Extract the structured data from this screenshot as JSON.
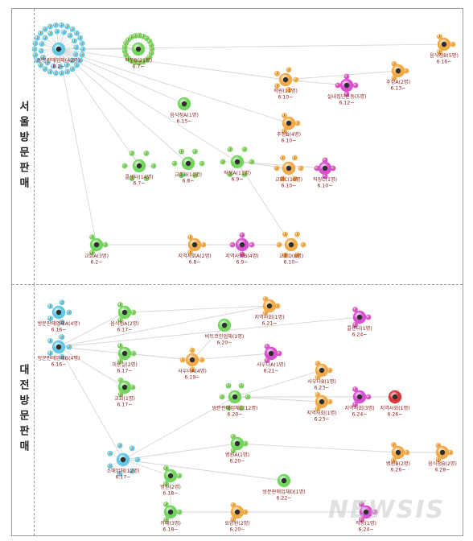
{
  "sections": {
    "seoul": "서울방문판매",
    "daejeon": "대전방문판매"
  },
  "watermark": "NEWSIS",
  "colors": {
    "blue": "#63c7e6",
    "green": "#72d65e",
    "orange": "#f2aa48",
    "magenta": "#d94fd2",
    "red": "#d93a3a",
    "label": "#8b1a1a"
  },
  "nodes": [
    {
      "id": "s1",
      "name": "방문판매업체(42명)",
      "date": "6.2~",
      "color": "blue"
    },
    {
      "id": "s2",
      "name": "직장B(21명)",
      "date": "6.7~",
      "color": "green"
    },
    {
      "id": "s3",
      "name": "음식점B(5명)",
      "date": "6.16~",
      "color": "orange"
    },
    {
      "id": "s4",
      "name": "학원(11명)",
      "date": "6.10~",
      "color": "orange"
    },
    {
      "id": "s5",
      "name": "실내집단운동(5명)",
      "date": "6.12~",
      "color": "magenta"
    },
    {
      "id": "s6",
      "name": "추정A(2명)",
      "date": "6.13~",
      "color": "orange"
    },
    {
      "id": "s7",
      "name": "음식점A(1명)",
      "date": "6.15~",
      "color": "green"
    },
    {
      "id": "s8",
      "name": "추정B(4명)",
      "date": "6.10~",
      "color": "orange"
    },
    {
      "id": "s9",
      "name": "콜센터(14명)",
      "date": "6.7~",
      "color": "green"
    },
    {
      "id": "s10",
      "name": "교회B(11명)",
      "date": "6.8~",
      "color": "green"
    },
    {
      "id": "s11",
      "name": "직장A(11명)",
      "date": "6.9~",
      "color": "green"
    },
    {
      "id": "s12",
      "name": "교회C(10명)",
      "date": "6.10~",
      "color": "orange"
    },
    {
      "id": "s13",
      "name": "직장C(1명)",
      "date": "6.10~",
      "color": "magenta"
    },
    {
      "id": "s14",
      "name": "교회A(3명)",
      "date": "6.2~",
      "color": "green"
    },
    {
      "id": "s15",
      "name": "지역사회A(2명)",
      "date": "6.8~",
      "color": "orange"
    },
    {
      "id": "s16",
      "name": "지역사회B(4명)",
      "date": "6.9~",
      "color": "magenta"
    },
    {
      "id": "s17",
      "name": "교회D(8명)",
      "date": "6.10~",
      "color": "orange"
    },
    {
      "id": "d1",
      "name": "방문판매업체A(4명)",
      "date": "6.16~",
      "color": "blue"
    },
    {
      "id": "d2",
      "name": "방문판매업체B(4명)",
      "date": "6.16~",
      "color": "blue"
    },
    {
      "id": "d3",
      "name": "음식점A(2명)",
      "date": "6.17~",
      "color": "green"
    },
    {
      "id": "d4",
      "name": "미용실(2명)",
      "date": "6.17~",
      "color": "green"
    },
    {
      "id": "d5",
      "name": "교회(1명)",
      "date": "6.17~",
      "color": "green"
    },
    {
      "id": "d6",
      "name": "지역사회(1명)",
      "date": "6.21~",
      "color": "orange"
    },
    {
      "id": "d7",
      "name": "비트코인업체(1명)",
      "date": "6.20~",
      "color": "green"
    },
    {
      "id": "d8",
      "name": "콜센터(1명)",
      "date": "6.24~",
      "color": "magenta"
    },
    {
      "id": "d9",
      "name": "사우나A(4명)",
      "date": "6.19~",
      "color": "orange"
    },
    {
      "id": "d10",
      "name": "사우나A(1명)",
      "date": "6.21~",
      "color": "magenta"
    },
    {
      "id": "d11",
      "name": "사우나B(1명)",
      "date": "6.23~",
      "color": "orange"
    },
    {
      "id": "d12",
      "name": "방문판매업체C(12명)",
      "date": "6.20~",
      "color": "green"
    },
    {
      "id": "d13",
      "name": "지역사회(1명)",
      "date": "6.23~",
      "color": "orange"
    },
    {
      "id": "d14",
      "name": "지역사회(3명)",
      "date": "6.24~",
      "color": "magenta"
    },
    {
      "id": "d15",
      "name": "지역사회(1명)",
      "date": "6.26~",
      "color": "red"
    },
    {
      "id": "d16",
      "name": "소매업체(12명)",
      "date": "6.17~",
      "color": "blue"
    },
    {
      "id": "d17",
      "name": "병원A(1명)",
      "date": "6.20~",
      "color": "green"
    },
    {
      "id": "d18",
      "name": "병원B(2명)",
      "date": "6.26~",
      "color": "orange"
    },
    {
      "id": "d19",
      "name": "음식점B(2명)",
      "date": "6.28~",
      "color": "orange"
    },
    {
      "id": "d20",
      "name": "병원(2명)",
      "date": "6.18~",
      "color": "green"
    },
    {
      "id": "d21",
      "name": "방문판매업체D(1명)",
      "date": "6.22~",
      "color": "green"
    },
    {
      "id": "d22",
      "name": "카페(3명)",
      "date": "6.18~",
      "color": "green"
    },
    {
      "id": "d23",
      "name": "요양원(2명)",
      "date": "6.20~",
      "color": "orange"
    },
    {
      "id": "d24",
      "name": "직장(1명)",
      "date": "6.24~",
      "color": "magenta"
    }
  ],
  "edges": [
    [
      "s1",
      "s2"
    ],
    [
      "s1",
      "s3"
    ],
    [
      "s1",
      "s4"
    ],
    [
      "s1",
      "s7"
    ],
    [
      "s1",
      "s8"
    ],
    [
      "s1",
      "s9"
    ],
    [
      "s1",
      "s10"
    ],
    [
      "s1",
      "s11"
    ],
    [
      "s1",
      "s14"
    ],
    [
      "s4",
      "s5"
    ],
    [
      "s4",
      "s6"
    ],
    [
      "s11",
      "s12"
    ],
    [
      "s11",
      "s13"
    ],
    [
      "s11",
      "s17"
    ],
    [
      "s14",
      "s15"
    ],
    [
      "s14",
      "s16"
    ],
    [
      "s14",
      "s17"
    ],
    [
      "d1",
      "d2"
    ],
    [
      "d2",
      "d3"
    ],
    [
      "d2",
      "d4"
    ],
    [
      "d2",
      "d5"
    ],
    [
      "d2",
      "d6"
    ],
    [
      "d2",
      "d8"
    ],
    [
      "d2",
      "d16"
    ],
    [
      "d3",
      "d6"
    ],
    [
      "d4",
      "d9"
    ],
    [
      "d9",
      "d10"
    ],
    [
      "d9",
      "d7"
    ],
    [
      "d16",
      "d12"
    ],
    [
      "d12",
      "d11"
    ],
    [
      "d12",
      "d13"
    ],
    [
      "d12",
      "d14"
    ],
    [
      "d12",
      "d15"
    ],
    [
      "d16",
      "d17"
    ],
    [
      "d17",
      "d18"
    ],
    [
      "d18",
      "d19"
    ],
    [
      "d16",
      "d20"
    ],
    [
      "d16",
      "d21"
    ],
    [
      "d20",
      "d22"
    ],
    [
      "d22",
      "d23"
    ],
    [
      "d23",
      "d24"
    ]
  ]
}
